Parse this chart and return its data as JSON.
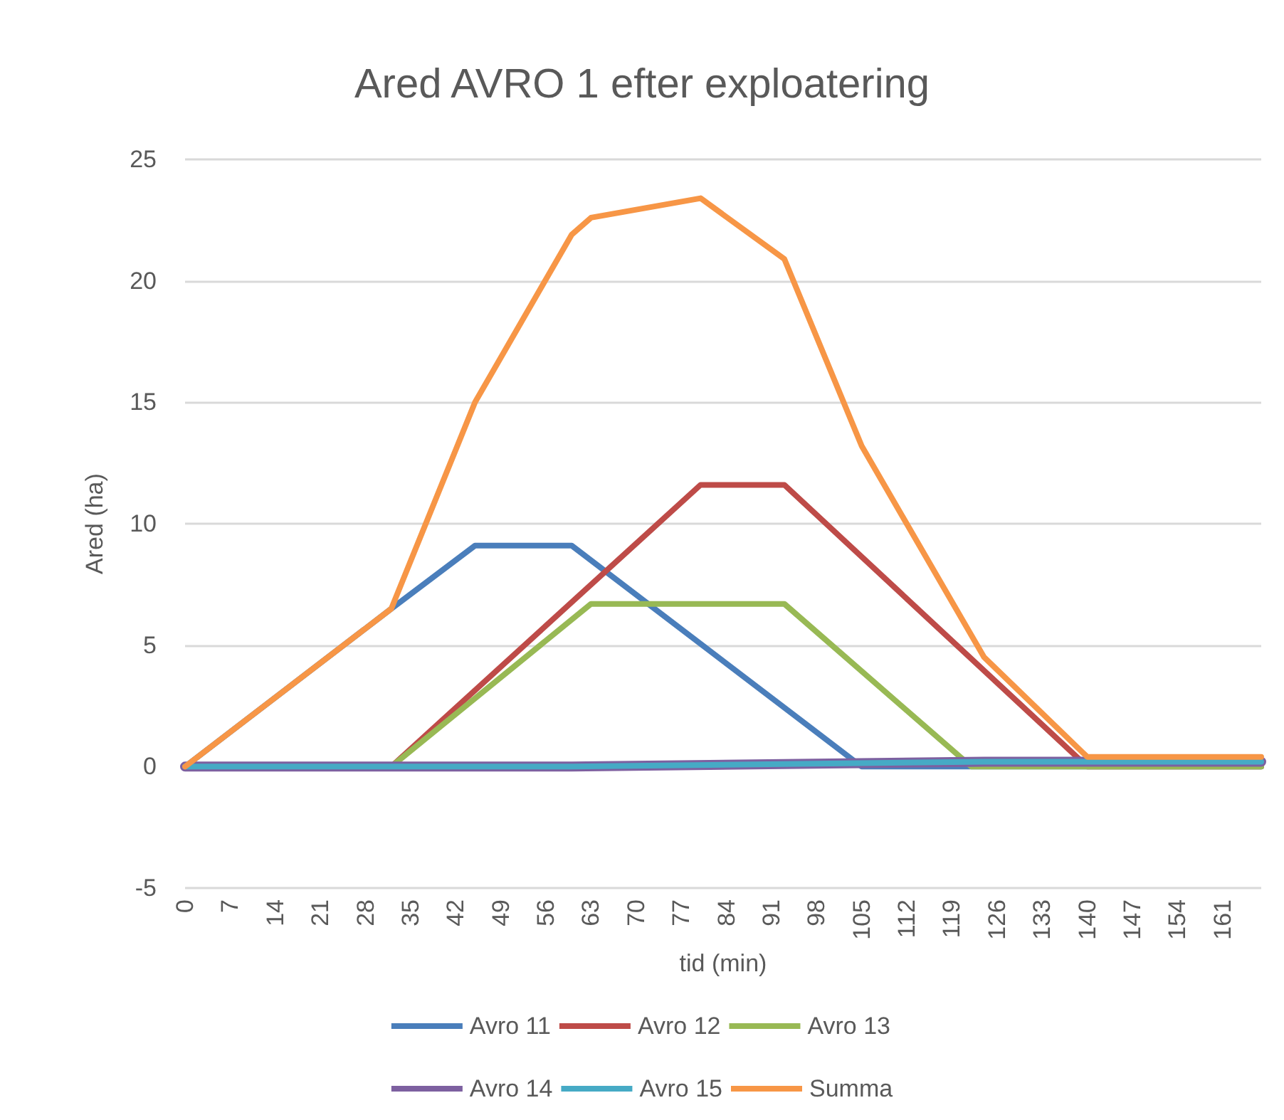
{
  "chart_data": {
    "type": "line",
    "title": "Ared AVRO 1 efter exploatering",
    "xlabel": "tid (min)",
    "ylabel": "Ared (ha)",
    "xlim": [
      0,
      167
    ],
    "xticks": [
      0,
      7,
      14,
      21,
      28,
      35,
      42,
      49,
      56,
      63,
      70,
      77,
      84,
      91,
      98,
      105,
      112,
      119,
      126,
      133,
      140,
      147,
      154,
      161
    ],
    "ylim": [
      -5,
      25
    ],
    "yticks": [
      -5,
      0,
      5,
      10,
      15,
      20,
      25
    ],
    "grid": "y",
    "legend": "bottom",
    "marker": "none",
    "line_style": "solid",
    "series": [
      {
        "name": "Avro 11",
        "color": "#4a7ebb",
        "x": [
          0,
          32,
          45,
          60,
          105,
          167
        ],
        "values": [
          0,
          6.5,
          9.1,
          9.1,
          0,
          0
        ]
      },
      {
        "name": "Avro 12",
        "color": "#be4b48",
        "x": [
          0,
          32,
          80,
          93,
          140,
          167
        ],
        "values": [
          0,
          0,
          11.6,
          11.6,
          0,
          0
        ]
      },
      {
        "name": "Avro 13",
        "color": "#98b954",
        "x": [
          0,
          32,
          63,
          93,
          122,
          167
        ],
        "values": [
          0,
          0,
          6.7,
          6.7,
          0,
          0
        ]
      },
      {
        "name": "Avro 14",
        "color": "#7d60a0",
        "x": [
          0,
          60,
          124,
          167
        ],
        "values": [
          0,
          0,
          0.2,
          0.2
        ]
      },
      {
        "name": "Avro 15",
        "color": "#46aac5",
        "x": [
          0,
          60,
          124,
          167
        ],
        "values": [
          0,
          0,
          0.2,
          0.2
        ]
      },
      {
        "name": "Summa",
        "color": "#f79646",
        "x": [
          0,
          32,
          45,
          60,
          63,
          80,
          93,
          105,
          124,
          140,
          167
        ],
        "values": [
          0,
          6.5,
          15.0,
          21.9,
          22.6,
          23.4,
          20.9,
          13.2,
          4.5,
          0.4,
          0.4
        ]
      }
    ]
  }
}
